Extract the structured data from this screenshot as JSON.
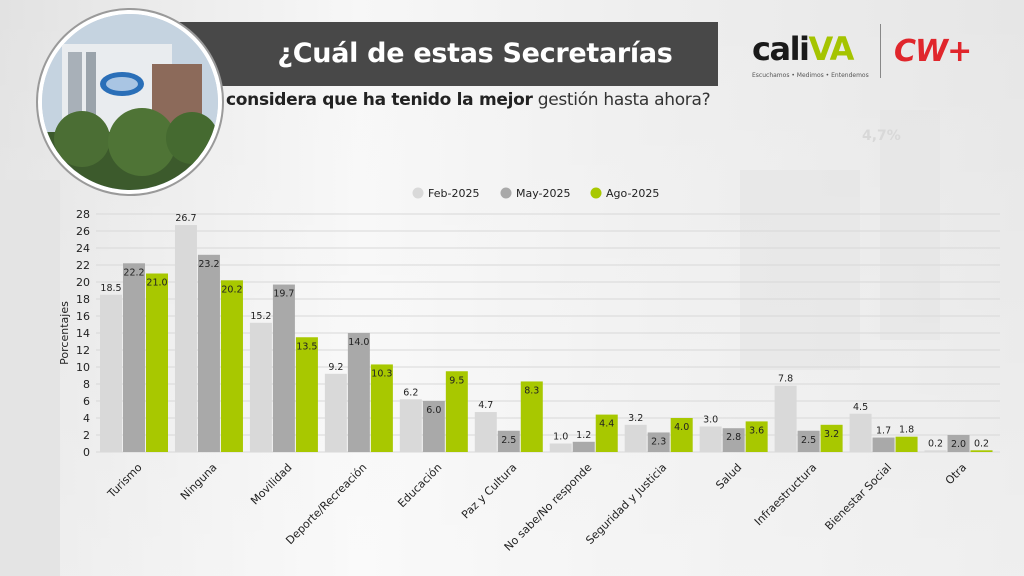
{
  "header": {
    "title": "¿Cuál de estas Secretarías",
    "subtitle_bold": "considera que ha tenido la mejor",
    "subtitle_rest": " gestión hasta ahora?"
  },
  "logos": {
    "cali_prefix": "cali",
    "cali_suffix": "VA",
    "cali_tagline": "Escuchamos • Medimos • Entendemos",
    "cw": "CW+"
  },
  "background_text": "4,7%",
  "colors": {
    "feb": "#d9d9d9",
    "may": "#a9a9a9",
    "ago": "#a8c800",
    "title_bar": "#484848"
  },
  "chart_data": {
    "type": "bar",
    "ylabel": "Porcentajes",
    "xlabel": "",
    "ylim": [
      0,
      28
    ],
    "yticks": [
      0,
      2,
      4,
      6,
      8,
      10,
      12,
      14,
      16,
      18,
      20,
      22,
      24,
      26,
      28
    ],
    "grid": true,
    "legend_position": "top-center",
    "categories": [
      "Turismo",
      "Ninguna",
      "Movilidad",
      "Deporte/Recreación",
      "Educación",
      "Paz y Cultura",
      "No sabe/No responde",
      "Seguridad y Justicia",
      "Salud",
      "Infraestructura",
      "Bienestar Social",
      "Otra"
    ],
    "series": [
      {
        "name": "Feb-2025",
        "values": [
          18.5,
          26.7,
          15.2,
          9.2,
          6.2,
          4.7,
          1.0,
          3.2,
          3.0,
          7.8,
          4.5,
          0.2
        ]
      },
      {
        "name": "May-2025",
        "values": [
          22.2,
          23.2,
          19.7,
          14.0,
          6.0,
          2.5,
          1.2,
          2.3,
          2.8,
          2.5,
          1.7,
          2.0
        ]
      },
      {
        "name": "Ago-2025",
        "values": [
          21.0,
          20.2,
          13.5,
          10.3,
          9.5,
          8.3,
          4.4,
          4.0,
          3.6,
          3.2,
          1.8,
          0.2
        ]
      }
    ]
  }
}
